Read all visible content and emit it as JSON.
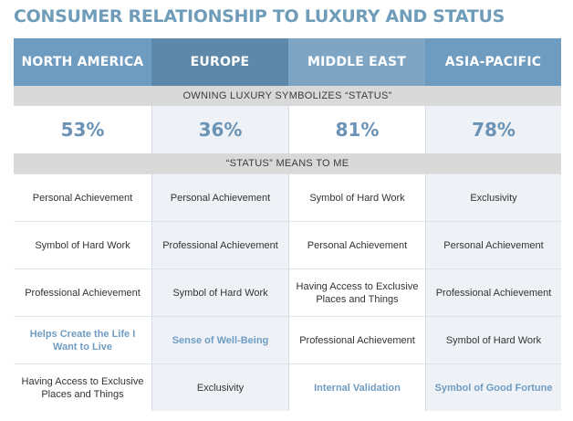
{
  "title": "CONSUMER RELATIONSHIP TO LUXURY AND STATUS",
  "regions": [
    "NORTH AMERICA",
    "EUROPE",
    "MIDDLE EAST",
    "ASIA-PACIFIC"
  ],
  "section1_label": "OWNING LUXURY SYMBOLIZES “STATUS”",
  "percentages": [
    "53%",
    "36%",
    "81%",
    "78%"
  ],
  "section2_label": "“STATUS” MEANS TO ME",
  "rows": [
    [
      "Personal Achievement",
      "Personal Achievement",
      "Symbol of Hard Work",
      "Exclusivity"
    ],
    [
      "Symbol of Hard Work",
      "Professional Achievement",
      "Personal Achievement",
      "Personal Achievement"
    ],
    [
      "Professional Achievement",
      "Symbol of Hard Work",
      "Having Access to Exclusive Places and Things",
      "Professional Achievement"
    ],
    [
      "Helps Create the Life I Want to Live",
      "Sense of Well-Being",
      "Professional Achievement",
      "Symbol of Hard Work"
    ],
    [
      "Having Access to Exclusive Places and Things",
      "Exclusivity",
      "Internal Validation",
      "Symbol of Good Fortune"
    ]
  ],
  "colors": {
    "title": "#6f9cb9",
    "header_dark": "#5e88a9",
    "header_mid": "#6e9bc0",
    "header_light": "#7ea6c4",
    "band": "#d9d9d9",
    "highlight_text": "#6f9cc2"
  }
}
